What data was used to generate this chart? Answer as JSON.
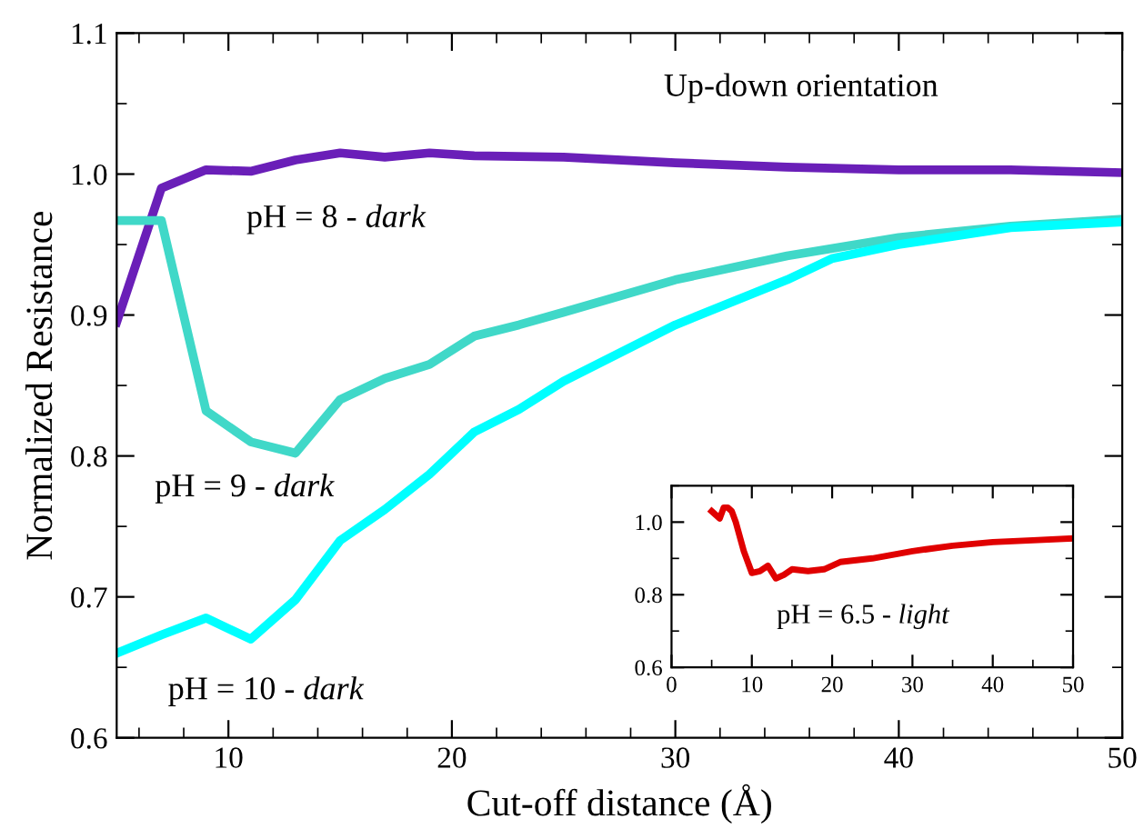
{
  "chart_data": [
    {
      "type": "line",
      "xlabel": "Cut-off distance (Å)",
      "ylabel": "Normalized Resistance",
      "xlim": [
        5,
        50
      ],
      "ylim": [
        0.6,
        1.1
      ],
      "xticks": [
        {
          "value": 6,
          "label": null
        },
        {
          "value": 8,
          "label": null
        },
        10,
        {
          "value": 12,
          "label": null
        },
        {
          "value": 14,
          "label": null
        },
        {
          "value": 16,
          "label": null
        },
        {
          "value": 18,
          "label": null
        },
        20,
        {
          "value": 22,
          "label": null
        },
        {
          "value": 24,
          "label": null
        },
        {
          "value": 26,
          "label": null
        },
        {
          "value": 28,
          "label": null
        },
        30,
        {
          "value": 32,
          "label": null
        },
        {
          "value": 34,
          "label": null
        },
        {
          "value": 36,
          "label": null
        },
        {
          "value": 38,
          "label": null
        },
        40,
        {
          "value": 42,
          "label": null
        },
        {
          "value": 44,
          "label": null
        },
        {
          "value": 46,
          "label": null
        },
        {
          "value": 48,
          "label": null
        },
        50
      ],
      "yticks": [
        0.6,
        {
          "value": 0.65,
          "label": null
        },
        0.7,
        {
          "value": 0.75,
          "label": null
        },
        0.8,
        {
          "value": 0.85,
          "label": null
        },
        0.9,
        {
          "value": 0.95,
          "label": null
        },
        {
          "value": 1.0,
          "label": "1.0"
        },
        {
          "value": 1.05,
          "label": null
        },
        1.1
      ],
      "grid": false,
      "marker": "none",
      "line_style": "solid",
      "series": [
        {
          "color": "#6a1fb8",
          "x": [
            5,
            7,
            9,
            11,
            13,
            15,
            17,
            19,
            21,
            25,
            30,
            35,
            40,
            45,
            50
          ],
          "values": [
            0.895,
            0.99,
            1.003,
            1.002,
            1.01,
            1.015,
            1.012,
            1.015,
            1.013,
            1.012,
            1.008,
            1.005,
            1.003,
            1.003,
            1.001
          ]
        },
        {
          "color": "#40d8c8",
          "x": [
            5,
            7,
            9,
            11,
            13,
            15,
            17,
            19,
            21,
            23,
            25,
            30,
            35,
            40,
            45,
            50
          ],
          "values": [
            0.967,
            0.967,
            0.832,
            0.81,
            0.802,
            0.84,
            0.855,
            0.865,
            0.885,
            0.893,
            0.902,
            0.925,
            0.942,
            0.955,
            0.963,
            0.968
          ]
        },
        {
          "color": "#00ffff",
          "x": [
            5,
            7,
            9,
            11,
            13,
            15,
            17,
            19,
            21,
            23,
            25,
            30,
            35,
            37,
            40,
            45,
            50
          ],
          "values": [
            0.66,
            0.673,
            0.685,
            0.67,
            0.698,
            0.74,
            0.762,
            0.787,
            0.817,
            0.833,
            0.853,
            0.893,
            0.925,
            0.94,
            0.95,
            0.962,
            0.966
          ]
        }
      ],
      "annotations": [
        "Up-down orientation",
        "pH = 8 - dark",
        "pH = 9 - dark",
        "pH = 10 - dark"
      ]
    },
    {
      "type": "line",
      "xlim": [
        0,
        50
      ],
      "ylim": [
        0.6,
        1.1
      ],
      "xticks": [
        0,
        {
          "value": 5,
          "label": null
        },
        10,
        {
          "value": 15,
          "label": null
        },
        20,
        {
          "value": 25,
          "label": null
        },
        30,
        {
          "value": 35,
          "label": null
        },
        40,
        {
          "value": 45,
          "label": null
        },
        50
      ],
      "yticks": [
        0.6,
        {
          "value": 0.7,
          "label": null
        },
        0.8,
        {
          "value": 0.9,
          "label": null
        },
        {
          "value": 1.0,
          "label": "1.0"
        },
        {
          "value": 1.1,
          "label": null
        }
      ],
      "grid": false,
      "marker": "none",
      "line_style": "solid",
      "series": [
        {
          "color": "#e00000",
          "x": [
            5,
            5.5,
            6,
            6.5,
            7,
            7.5,
            8,
            9,
            10,
            11,
            12,
            13,
            14,
            15,
            17,
            19,
            21,
            25,
            30,
            35,
            40,
            45,
            50
          ],
          "values": [
            1.03,
            1.02,
            1.01,
            1.04,
            1.04,
            1.03,
            1.0,
            0.92,
            0.86,
            0.865,
            0.88,
            0.845,
            0.855,
            0.87,
            0.865,
            0.87,
            0.89,
            0.9,
            0.92,
            0.935,
            0.945,
            0.95,
            0.955
          ]
        }
      ],
      "annotations": [
        "pH = 6.5 - light"
      ]
    }
  ]
}
